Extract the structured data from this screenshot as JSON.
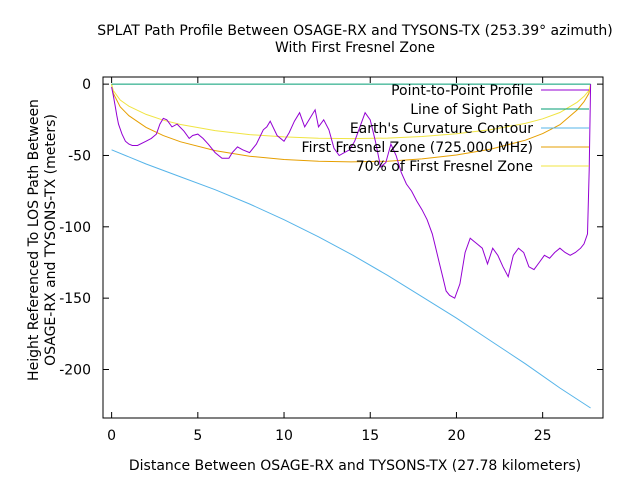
{
  "chart_data": {
    "type": "line",
    "title_line1": "SPLAT Path Profile Between OSAGE-RX and TYSONS-TX (253.39° azimuth)",
    "title_line2": "With First Fresnel Zone",
    "xlabel": "Distance Between OSAGE-RX and TYSONS-TX (27.78 kilometers)",
    "ylabel_line1": "Height Referenced To LOS Path Between",
    "ylabel_line2": "OSAGE-RX and TYSONS-TX (meters)",
    "xlim": [
      -0.5,
      28.5
    ],
    "ylim": [
      -234,
      5
    ],
    "xticks": [
      0,
      5,
      10,
      15,
      20,
      25
    ],
    "yticks": [
      0,
      -50,
      -100,
      -150,
      -200
    ],
    "grid": false,
    "legend_position": "top-right",
    "series": [
      {
        "name": "Point-to-Point Profile",
        "color": "#9400d3",
        "x": [
          0,
          0.1,
          0.2,
          0.3,
          0.4,
          0.6,
          0.8,
          1.0,
          1.2,
          1.5,
          2.0,
          2.3,
          2.6,
          2.8,
          3.0,
          3.2,
          3.5,
          3.8,
          4.2,
          4.5,
          4.7,
          5.0,
          5.3,
          5.6,
          6.0,
          6.4,
          6.8,
          7.0,
          7.3,
          7.6,
          8.0,
          8.4,
          8.8,
          9.0,
          9.2,
          9.6,
          10.0,
          10.3,
          10.6,
          10.9,
          11.2,
          11.5,
          11.8,
          12.0,
          12.3,
          12.6,
          12.9,
          13.2,
          13.5,
          13.8,
          14.1,
          14.4,
          14.7,
          15.0,
          15.3,
          15.6,
          15.9,
          16.2,
          16.5,
          16.8,
          17.1,
          17.4,
          17.7,
          18.0,
          18.3,
          18.6,
          18.8,
          19.0,
          19.2,
          19.4,
          19.6,
          19.9,
          20.2,
          20.5,
          20.8,
          21.0,
          21.2,
          21.5,
          21.8,
          22.1,
          22.4,
          22.7,
          23.0,
          23.3,
          23.6,
          23.9,
          24.2,
          24.5,
          24.8,
          25.1,
          25.4,
          25.7,
          26.0,
          26.3,
          26.6,
          26.9,
          27.2,
          27.4,
          27.6,
          27.7,
          27.78
        ],
        "values": [
          -2,
          -8,
          -15,
          -22,
          -28,
          -35,
          -40,
          -42,
          -43,
          -43,
          -40,
          -38,
          -35,
          -28,
          -24,
          -25,
          -30,
          -28,
          -33,
          -38,
          -36,
          -35,
          -38,
          -42,
          -48,
          -52,
          -52,
          -48,
          -44,
          -46,
          -48,
          -42,
          -32,
          -30,
          -26,
          -36,
          -40,
          -34,
          -26,
          -20,
          -30,
          -24,
          -18,
          -30,
          -25,
          -32,
          -45,
          -50,
          -48,
          -46,
          -40,
          -30,
          -20,
          -25,
          -40,
          -58,
          -55,
          -42,
          -50,
          -62,
          -70,
          -75,
          -82,
          -88,
          -95,
          -105,
          -115,
          -125,
          -135,
          -145,
          -148,
          -150,
          -140,
          -118,
          -108,
          -110,
          -112,
          -115,
          -126,
          -115,
          -120,
          -128,
          -135,
          -120,
          -115,
          -118,
          -128,
          -130,
          -125,
          -120,
          -122,
          -118,
          -115,
          -118,
          -120,
          -118,
          -115,
          -112,
          -105,
          -60,
          0
        ]
      },
      {
        "name": "Line of Sight Path",
        "color": "#009e73",
        "x": [
          0,
          27.78
        ],
        "values": [
          0,
          0
        ]
      },
      {
        "name": "Earth's Curvature Contour",
        "color": "#56b4e9",
        "x": [
          0,
          2,
          4,
          6,
          8,
          10,
          12,
          14,
          16,
          18,
          20,
          22,
          24,
          26,
          27.78
        ],
        "values": [
          -46,
          -56,
          -65,
          -74,
          -84,
          -95,
          -107,
          -120,
          -134,
          -149,
          -164,
          -180,
          -196,
          -213,
          -227
        ]
      },
      {
        "name": "First Fresnel Zone (725.000 MHz)",
        "color": "#e69f00",
        "x": [
          0,
          0.1,
          0.5,
          1,
          2,
          3,
          4,
          6,
          8,
          10,
          12,
          13.89,
          16,
          18,
          20,
          22,
          24,
          25,
          26,
          27,
          27.4,
          27.68,
          27.78
        ],
        "values": [
          0,
          -6.5,
          -15.9,
          -22.1,
          -30.3,
          -36.1,
          -40.4,
          -46.6,
          -50.5,
          -52.8,
          -54.1,
          -54.5,
          -54.0,
          -52.4,
          -49.7,
          -45.5,
          -39.3,
          -34.7,
          -28.4,
          -18.1,
          -12.3,
          -6.5,
          0
        ]
      },
      {
        "name": "70% of First Fresnel Zone",
        "color": "#f0e442",
        "x": [
          0,
          0.1,
          0.5,
          1,
          2,
          3,
          4,
          6,
          8,
          10,
          12,
          13.89,
          16,
          18,
          20,
          22,
          24,
          25,
          26,
          27,
          27.4,
          27.68,
          27.78
        ],
        "values": [
          0,
          -4.5,
          -11.1,
          -15.5,
          -21.2,
          -25.3,
          -28.3,
          -32.6,
          -35.4,
          -37.0,
          -37.9,
          -38.2,
          -37.8,
          -36.7,
          -34.8,
          -31.9,
          -27.5,
          -24.3,
          -19.9,
          -12.7,
          -8.6,
          -4.5,
          0
        ]
      }
    ]
  }
}
